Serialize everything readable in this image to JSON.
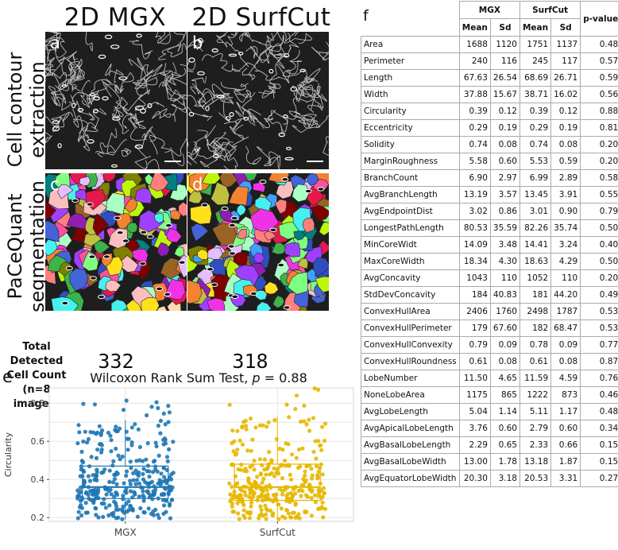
{
  "columns": {
    "left_title": "2D MGX",
    "right_title": "2D SurfCut"
  },
  "rows": {
    "top_label_line1": "Cell contour",
    "top_label_line2": "extraction",
    "bottom_label_line1": "PaCeQuant",
    "bottom_label_line2": "segmentation"
  },
  "panels": {
    "a": "a",
    "b": "b",
    "c": "c",
    "d": "d"
  },
  "counts": {
    "label_line1": "Total Detected",
    "label_line2": "Cell Count",
    "label_line3": "(n=8 images)",
    "mgx": "332",
    "surfcut": "318"
  },
  "plot": {
    "letter": "e",
    "title": "Wilcoxon Rank Sum Test, p = 0.88",
    "title_prefix": "Wilcoxon Rank Sum Test, ",
    "title_p": "p",
    "title_suffix": " = 0.88",
    "colors": {
      "mgx": "#1f77b4",
      "surfcut": "#e6b800"
    }
  },
  "chart_data": {
    "type": "box",
    "title": "Wilcoxon Rank Sum Test, p = 0.88",
    "ylabel": "Circularity",
    "categories": [
      "MGX",
      "SurfCut"
    ],
    "yticks": [
      "0.2",
      "0.4",
      "0.6",
      "0.8"
    ],
    "ylim": [
      0.18,
      0.88
    ],
    "grid": true,
    "series": [
      {
        "name": "MGX",
        "min": 0.19,
        "q1": 0.3,
        "median": 0.36,
        "q3": 0.47,
        "max": 0.71,
        "outliers_max": 0.82,
        "n": 332
      },
      {
        "name": "SurfCut",
        "min": 0.19,
        "q1": 0.29,
        "median": 0.36,
        "q3": 0.48,
        "max": 0.73,
        "outliers_max": 0.88,
        "n": 318
      }
    ]
  },
  "table": {
    "letter": "f",
    "group_headers": [
      "MGX",
      "SurfCut"
    ],
    "sub_headers": [
      "Mean",
      "Sd",
      "Mean",
      "Sd"
    ],
    "pvalue_header": "p-value",
    "rows": [
      {
        "name": "Area",
        "v": [
          "1688",
          "1120",
          "1751",
          "1137",
          "0.48"
        ]
      },
      {
        "name": "Perimeter",
        "v": [
          "240",
          "116",
          "245",
          "117",
          "0.57"
        ]
      },
      {
        "name": "Length",
        "v": [
          "67.63",
          "26.54",
          "68.69",
          "26.71",
          "0.59"
        ]
      },
      {
        "name": "Width",
        "v": [
          "37.88",
          "15.67",
          "38.71",
          "16.02",
          "0.56"
        ]
      },
      {
        "name": "Circularity",
        "v": [
          "0.39",
          "0.12",
          "0.39",
          "0.12",
          "0.88"
        ]
      },
      {
        "name": "Eccentricity",
        "v": [
          "0.29",
          "0.19",
          "0.29",
          "0.19",
          "0.81"
        ]
      },
      {
        "name": "Solidity",
        "v": [
          "0.74",
          "0.08",
          "0.74",
          "0.08",
          "0.20"
        ]
      },
      {
        "name": "MarginRoughness",
        "v": [
          "5.58",
          "0.60",
          "5.53",
          "0.59",
          "0.20"
        ]
      },
      {
        "name": "BranchCount",
        "v": [
          "6.90",
          "2.97",
          "6.99",
          "2.89",
          "0.58"
        ]
      },
      {
        "name": "AvgBranchLength",
        "v": [
          "13.19",
          "3.57",
          "13.45",
          "3.91",
          "0.55"
        ]
      },
      {
        "name": "AvgEndpointDist",
        "v": [
          "3.02",
          "0.86",
          "3.01",
          "0.90",
          "0.79"
        ]
      },
      {
        "name": "LongestPathLength",
        "v": [
          "80.53",
          "35.59",
          "82.26",
          "35.74",
          "0.50"
        ]
      },
      {
        "name": "MinCoreWidt",
        "v": [
          "14.09",
          "3.48",
          "14.41",
          "3.24",
          "0.40"
        ]
      },
      {
        "name": "MaxCoreWidth",
        "v": [
          "18.34",
          "4.30",
          "18.63",
          "4.29",
          "0.50"
        ]
      },
      {
        "name": "AvgConcavity",
        "v": [
          "1043",
          "110",
          "1052",
          "110",
          "0.20"
        ]
      },
      {
        "name": "StdDevConcavity",
        "v": [
          "184",
          "40.83",
          "181",
          "44.20",
          "0.49"
        ]
      },
      {
        "name": "ConvexHullArea",
        "v": [
          "2406",
          "1760",
          "2498",
          "1787",
          "0.53"
        ]
      },
      {
        "name": "ConvexHullPerimeter",
        "v": [
          "179",
          "67.60",
          "182",
          "68.47",
          "0.53"
        ]
      },
      {
        "name": "ConvexHullConvexity",
        "v": [
          "0.79",
          "0.09",
          "0.78",
          "0.09",
          "0.77"
        ]
      },
      {
        "name": "ConvexHullRoundness",
        "v": [
          "0.61",
          "0.08",
          "0.61",
          "0.08",
          "0.87"
        ]
      },
      {
        "name": "LobeNumber",
        "v": [
          "11.50",
          "4.65",
          "11.59",
          "4.59",
          "0.76"
        ]
      },
      {
        "name": "NoneLobeArea",
        "v": [
          "1175",
          "865",
          "1222",
          "873",
          "0.46"
        ]
      },
      {
        "name": "AvgLobeLength",
        "v": [
          "5.04",
          "1.14",
          "5.11",
          "1.17",
          "0.48"
        ]
      },
      {
        "name": "AvgApicalLobeLength",
        "v": [
          "3.76",
          "0.60",
          "2.79",
          "0.60",
          "0.34"
        ]
      },
      {
        "name": "AvgBasalLobeLength",
        "v": [
          "2.29",
          "0.65",
          "2.33",
          "0.66",
          "0.15"
        ]
      },
      {
        "name": "AvgBasalLobeWidth",
        "v": [
          "13.00",
          "1.78",
          "13.18",
          "1.87",
          "0.15"
        ]
      },
      {
        "name": "AvgEquatorLobeWidth",
        "v": [
          "20.30",
          "3.18",
          "20.53",
          "3.31",
          "0.27"
        ]
      }
    ]
  }
}
